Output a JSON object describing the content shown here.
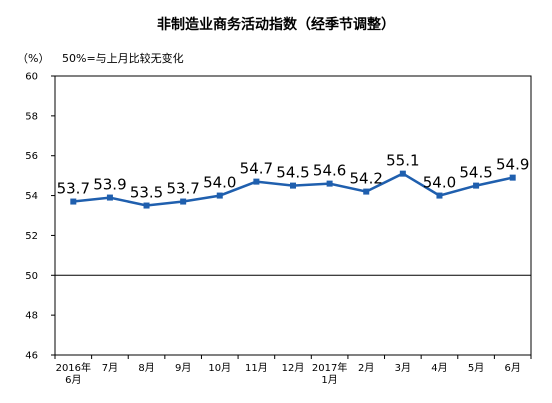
{
  "chart_data": {
    "type": "line",
    "title": "非制造业商务活动指数（经季节调整）",
    "unit_label": "（%）",
    "annotation": "50%=与上月比较无变化",
    "categories": [
      {
        "line1": "2016年",
        "line2": "6月"
      },
      {
        "line1": "7月",
        "line2": ""
      },
      {
        "line1": "8月",
        "line2": ""
      },
      {
        "line1": "9月",
        "line2": ""
      },
      {
        "line1": "10月",
        "line2": ""
      },
      {
        "line1": "11月",
        "line2": ""
      },
      {
        "line1": "12月",
        "line2": ""
      },
      {
        "line1": "2017年",
        "line2": "1月"
      },
      {
        "line1": "2月",
        "line2": ""
      },
      {
        "line1": "3月",
        "line2": ""
      },
      {
        "line1": "4月",
        "line2": ""
      },
      {
        "line1": "5月",
        "line2": ""
      },
      {
        "line1": "6月",
        "line2": ""
      }
    ],
    "values": [
      53.7,
      53.9,
      53.5,
      53.7,
      54.0,
      54.7,
      54.5,
      54.6,
      54.2,
      55.1,
      54.0,
      54.5,
      54.9
    ],
    "data_labels": [
      "53.7",
      "53.9",
      "53.5",
      "53.7",
      "54.0",
      "54.7",
      "54.5",
      "54.6",
      "54.2",
      "55.1",
      "54.0",
      "54.5",
      "54.9"
    ],
    "y_ticks": [
      "46",
      "48",
      "50",
      "52",
      "54",
      "56",
      "58",
      "60"
    ],
    "ylim": [
      46,
      60
    ],
    "reference_line": 50,
    "grid": false,
    "colors": {
      "line": "#1f5fae",
      "axis": "#000000"
    }
  }
}
